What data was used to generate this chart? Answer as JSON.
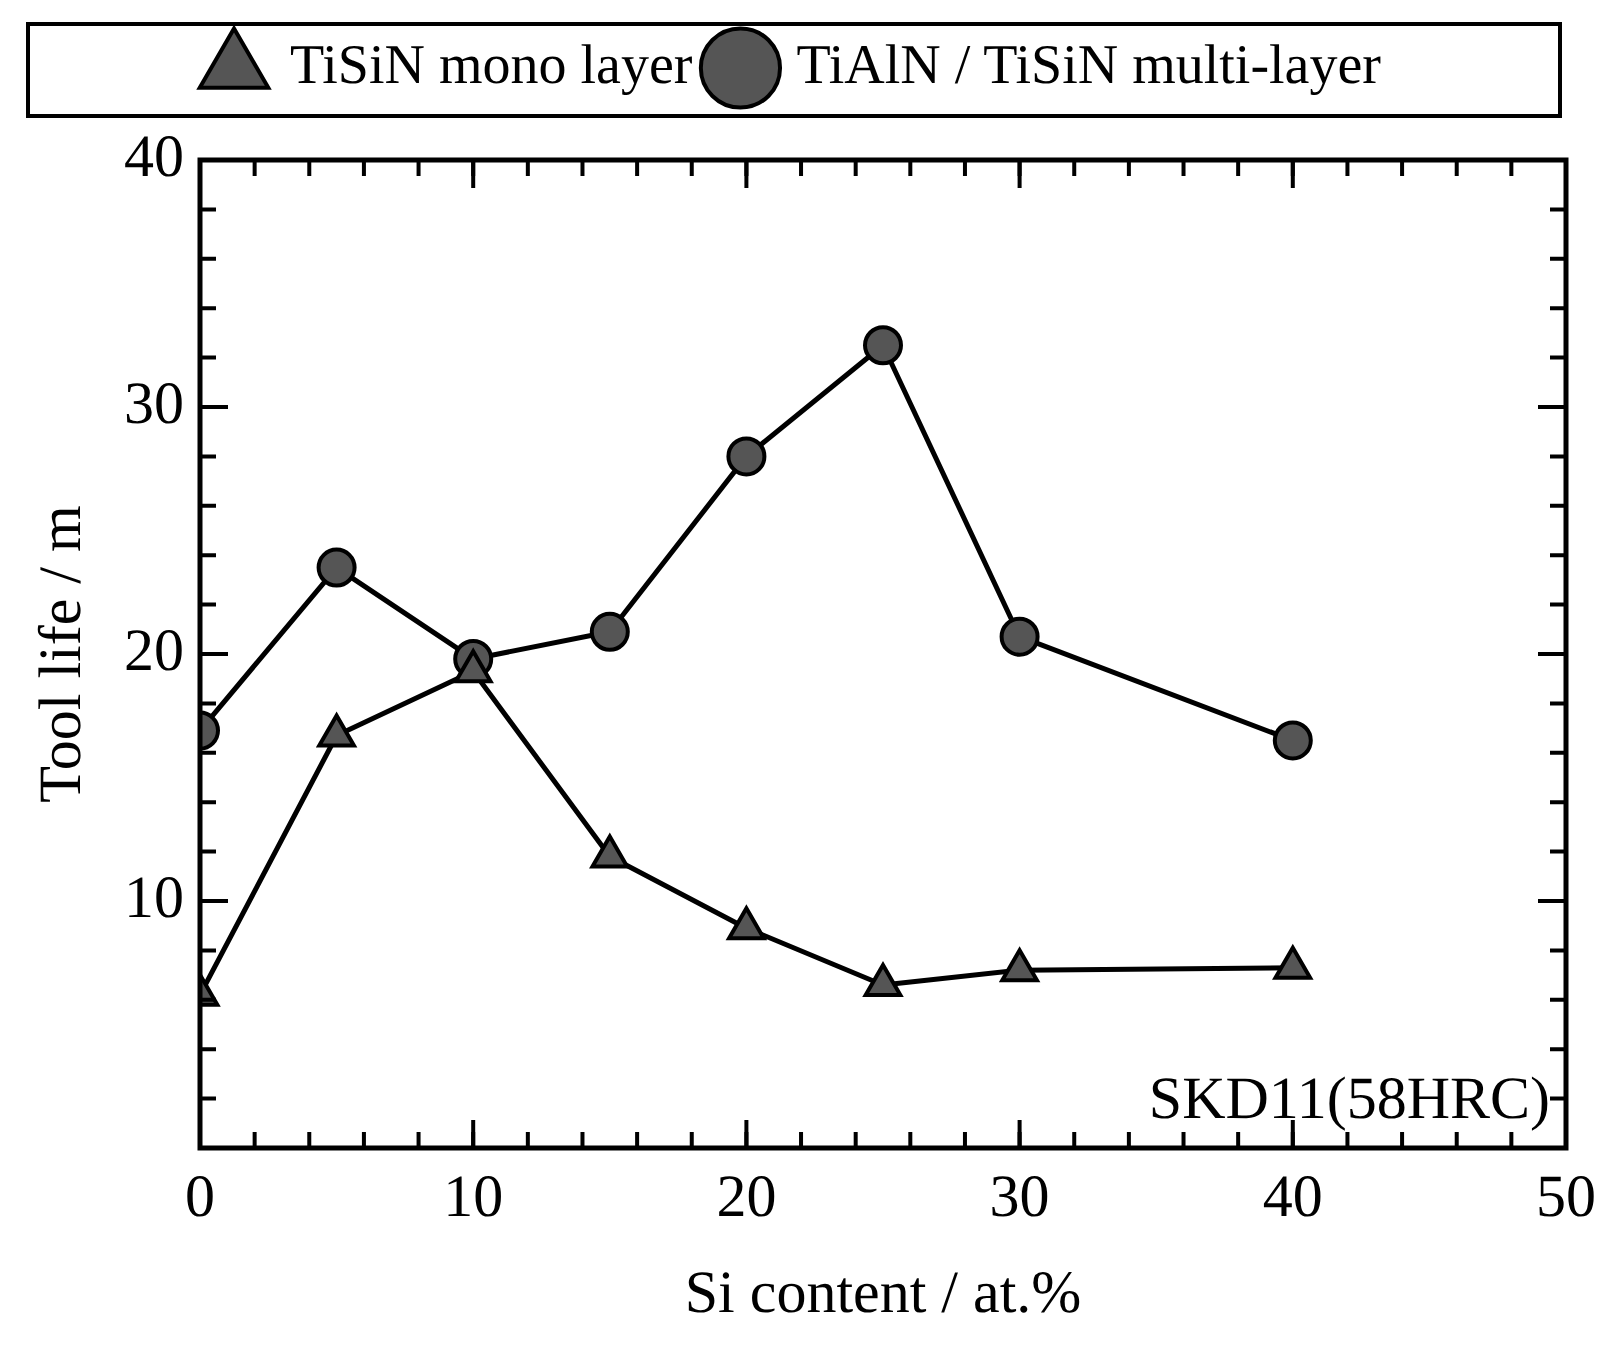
{
  "chart_data": {
    "type": "line",
    "xlabel": "Si content / at.%",
    "ylabel": "Tool life / m",
    "x": [
      0,
      5,
      10,
      15,
      20,
      25,
      30,
      40
    ],
    "series": [
      {
        "name": "TiSiN mono layer",
        "color": "#000000",
        "marker": "triangle",
        "values": [
          6.2,
          16.7,
          19.3,
          11.8,
          8.9,
          6.6,
          7.2,
          7.3
        ]
      },
      {
        "name": "TiAlN / TiSiN multi-layer",
        "color": "#000000",
        "marker": "circle",
        "values": [
          16.9,
          23.5,
          19.8,
          20.9,
          28.0,
          32.5,
          20.7,
          16.5
        ]
      }
    ],
    "xlim": [
      0,
      50
    ],
    "xticks": [
      0,
      10,
      20,
      30,
      40,
      50
    ],
    "ylim": [
      0,
      40
    ],
    "yticks": [
      {
        "value": 0,
        "label": null
      },
      10,
      20,
      30,
      40
    ],
    "grid": false,
    "legend": "top",
    "annotations": [
      "SKD11(58HRC)"
    ]
  }
}
